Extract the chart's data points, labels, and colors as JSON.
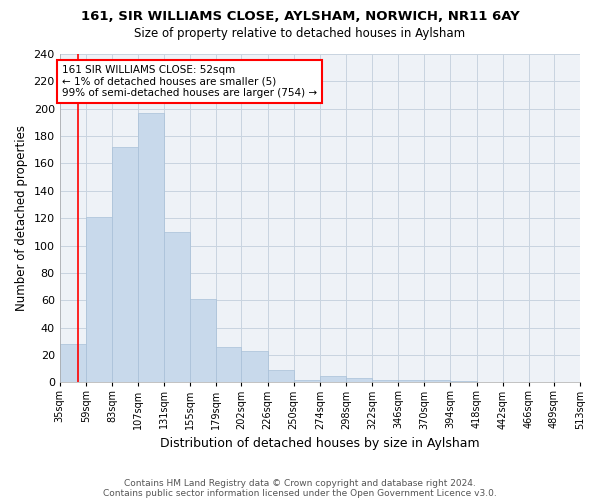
{
  "title1": "161, SIR WILLIAMS CLOSE, AYLSHAM, NORWICH, NR11 6AY",
  "title2": "Size of property relative to detached houses in Aylsham",
  "xlabel": "Distribution of detached houses by size in Aylsham",
  "ylabel": "Number of detached properties",
  "bins": [
    35,
    59,
    83,
    107,
    131,
    155,
    179,
    202,
    226,
    250,
    274,
    298,
    322,
    346,
    370,
    394,
    418,
    442,
    466,
    489,
    513
  ],
  "bar_heights": [
    28,
    121,
    172,
    197,
    110,
    61,
    26,
    23,
    9,
    2,
    5,
    3,
    2,
    2,
    2,
    1,
    0,
    0,
    0,
    0
  ],
  "tick_labels": [
    "35sqm",
    "59sqm",
    "83sqm",
    "107sqm",
    "131sqm",
    "155sqm",
    "179sqm",
    "202sqm",
    "226sqm",
    "250sqm",
    "274sqm",
    "298sqm",
    "322sqm",
    "346sqm",
    "370sqm",
    "394sqm",
    "418sqm",
    "442sqm",
    "466sqm",
    "489sqm",
    "513sqm"
  ],
  "bar_color": "#c8d9eb",
  "bar_edgecolor": "#a8c0d8",
  "grid_color": "#c8d4e0",
  "property_line_x": 52,
  "annotation_text": "161 SIR WILLIAMS CLOSE: 52sqm\n← 1% of detached houses are smaller (5)\n99% of semi-detached houses are larger (754) →",
  "annotation_box_color": "white",
  "annotation_box_edgecolor": "red",
  "property_line_color": "red",
  "footer1": "Contains HM Land Registry data © Crown copyright and database right 2024.",
  "footer2": "Contains public sector information licensed under the Open Government Licence v3.0.",
  "ylim": [
    0,
    240
  ],
  "yticks": [
    0,
    20,
    40,
    60,
    80,
    100,
    120,
    140,
    160,
    180,
    200,
    220,
    240
  ],
  "bg_color": "#ffffff",
  "plot_bg_color": "#eef2f7"
}
